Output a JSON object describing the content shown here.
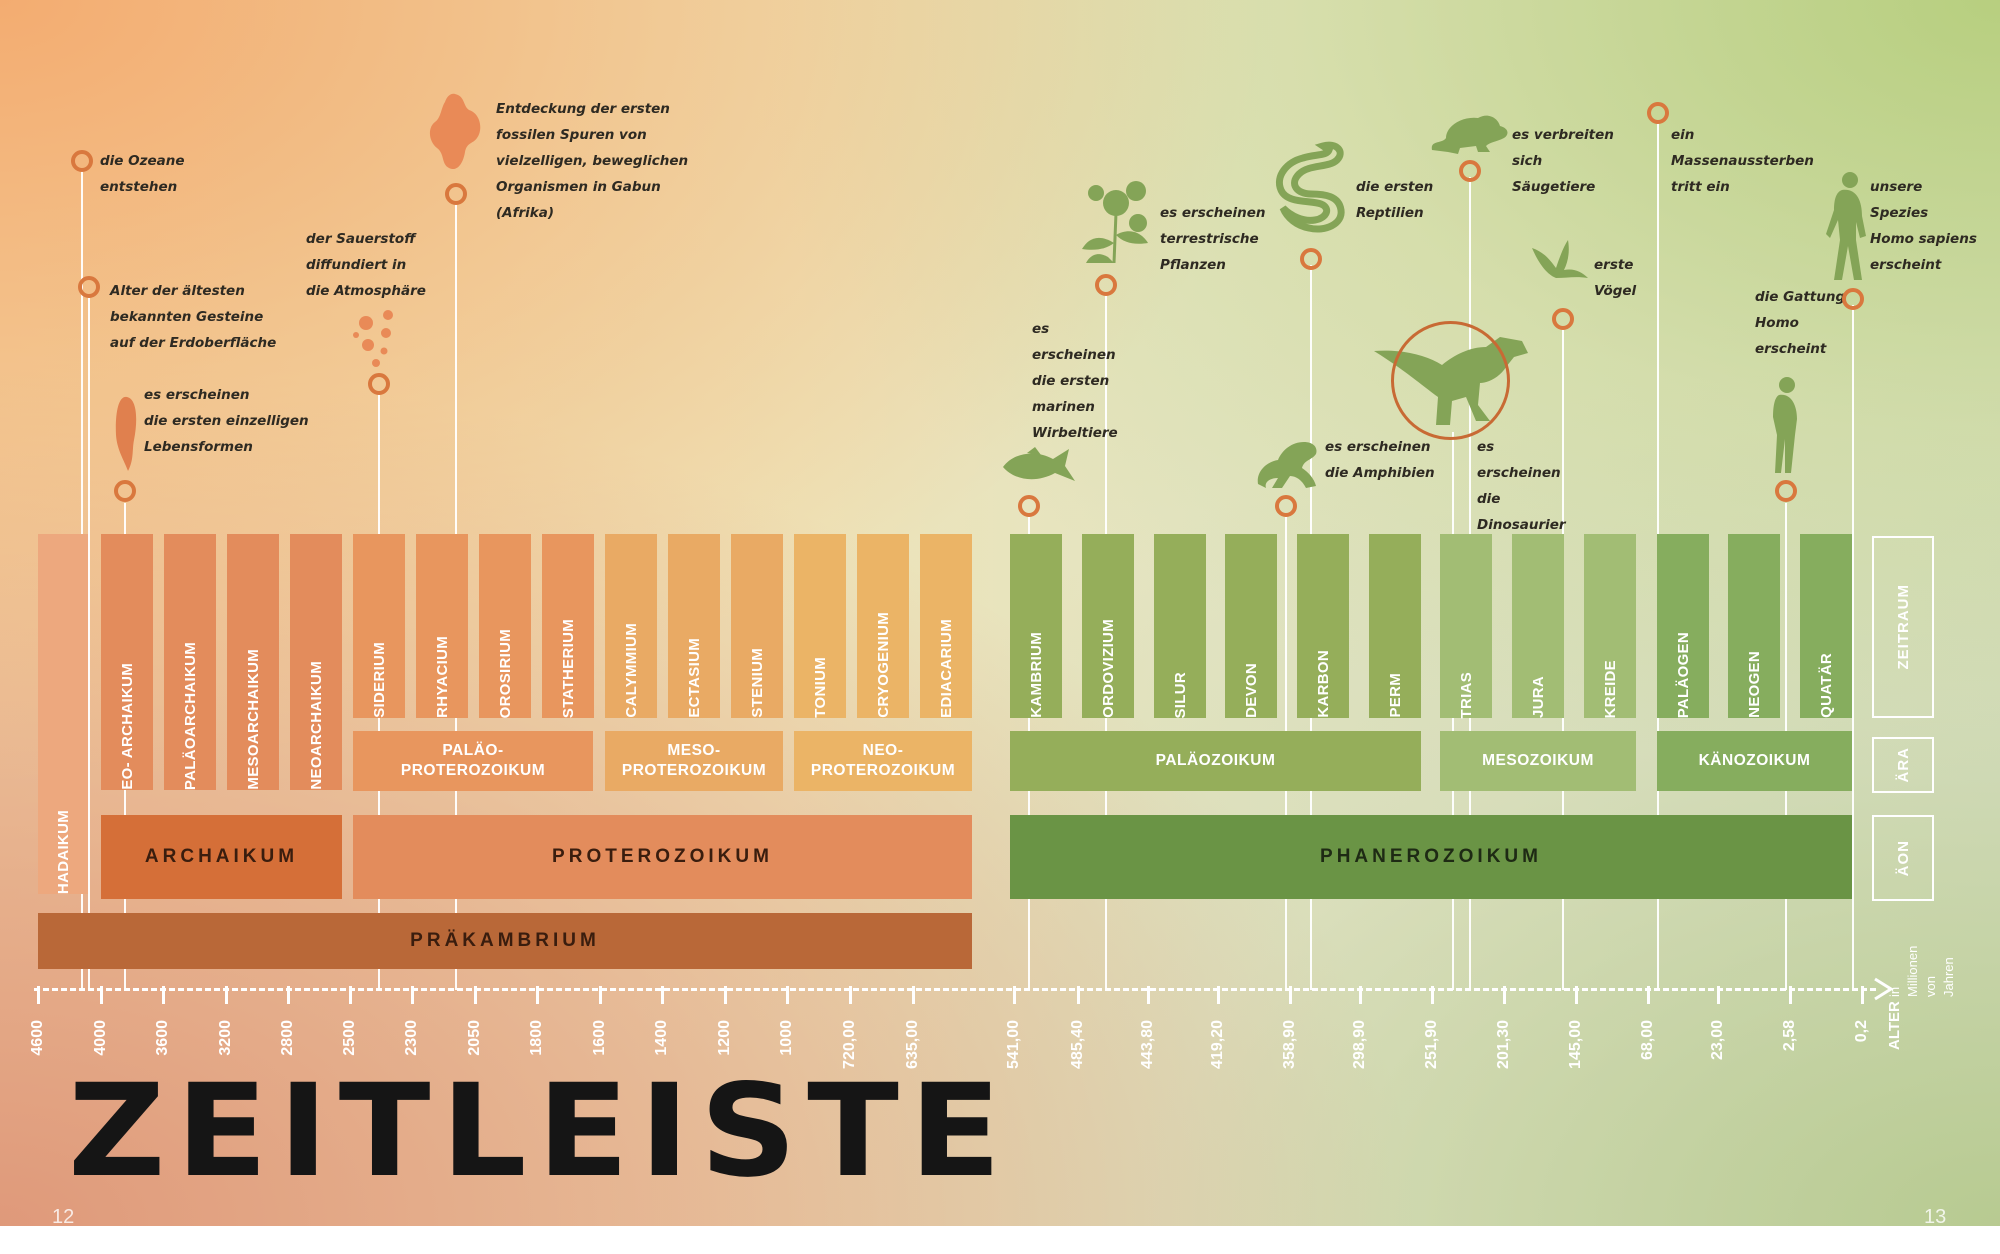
{
  "title": "ZEITLEISTE",
  "page_numbers": {
    "left": "12",
    "right": "13"
  },
  "colors": {
    "orange_eon": "#e38c5c",
    "archaikum": "#d56f38",
    "praekambrium": "#b96838",
    "phanerozoikum": "#6a9445",
    "circle": "#d9783e"
  },
  "eons": [
    {
      "label": "ARCHAIKUM"
    },
    {
      "label": "PROTEROZOIKUM"
    },
    {
      "label": "PHANEROZOIKUM"
    }
  ],
  "supereon": "PRÄKAMBRIUM",
  "hadaikum": "HADAIKUM",
  "eras": [
    {
      "label": "PALÄO-\nPROTEROZOIKUM"
    },
    {
      "label": "MESO-\nPROTEROZOIKUM"
    },
    {
      "label": "NEO-\nPROTEROZOIKUM"
    },
    {
      "label": "PALÄOZOIKUM"
    },
    {
      "label": "MESOZOIKUM"
    },
    {
      "label": "KÄNOZOIKUM"
    }
  ],
  "periods": [
    "EO- ARCHAIKUM",
    "PALÄOARCHAIKUM",
    "MESOARCHAIKUM",
    "NEOARCHAIKUM",
    "SIDERIUM",
    "RHYACIUM",
    "OROSIRIUM",
    "STATHERIUM",
    "CALYMMIUM",
    "ECTASIUM",
    "STENIUM",
    "TONIUM",
    "CRYOGENIUM",
    "EDIACARIUM",
    "KAMBRIUM",
    "ORDOVIZIUM",
    "SILUR",
    "DEVON",
    "KARBON",
    "PERM",
    "TRIAS",
    "JURA",
    "KREIDE",
    "PALÄOGEN",
    "NEOGEN",
    "QUATÄR"
  ],
  "row_labels": {
    "zeitraum": "ZEITRAUM",
    "aera": "ÄRA",
    "aeon": "ÄON"
  },
  "axis": {
    "label": "ALTER",
    "sublabel": "in Millionen\nvon Jahren",
    "ticks": [
      "4600",
      "4000",
      "3600",
      "3200",
      "2800",
      "2500",
      "2300",
      "2050",
      "1800",
      "1600",
      "1400",
      "1200",
      "1000",
      "720,00",
      "635,00",
      "541,00",
      "485,40",
      "443,80",
      "419,20",
      "358,90",
      "298,90",
      "251,90",
      "201,30",
      "145,00",
      "68,00",
      "23,00",
      "2,58",
      "0,2"
    ]
  },
  "events": [
    {
      "text": "die Ozeane\nentstehen"
    },
    {
      "text": "Alter der ältesten\nbekannten Gesteine\nauf der Erdoberfläche"
    },
    {
      "text": "es erscheinen\ndie ersten einzelligen\nLebensformen"
    },
    {
      "text": "der Sauerstoff\ndiffundiert in\ndie Atmosphäre"
    },
    {
      "text": "Entdeckung der ersten\nfossilen Spuren von\nvielzelligen, beweglichen\nOrganismen in Gabun\n(Afrika)"
    },
    {
      "text": "es\nerscheinen\ndie ersten\nmarinen\nWirbeltiere"
    },
    {
      "text": "es erscheinen\nterrestrische\nPflanzen"
    },
    {
      "text": "es erscheinen\ndie Amphibien"
    },
    {
      "text": "die ersten\nReptilien"
    },
    {
      "text": "es\nerscheinen\ndie\nDinosaurier"
    },
    {
      "text": "es verbreiten\nsich\nSäugetiere"
    },
    {
      "text": "erste\nVögel"
    },
    {
      "text": "ein\nMassenaussterben\ntritt ein"
    },
    {
      "text": "die Gattung\nHomo\nerscheint"
    },
    {
      "text": "unsere\nSpezies\nHomo sapiens\nerscheint"
    }
  ],
  "icons": [
    "single-cell-icon",
    "oxygen-bubbles-icon",
    "multicell-organism-icon",
    "fish-icon",
    "plant-icon",
    "frog-icon",
    "snake-icon",
    "dinosaur-icon",
    "mouse-icon",
    "bird-icon",
    "early-human-icon",
    "homo-sapiens-icon"
  ]
}
